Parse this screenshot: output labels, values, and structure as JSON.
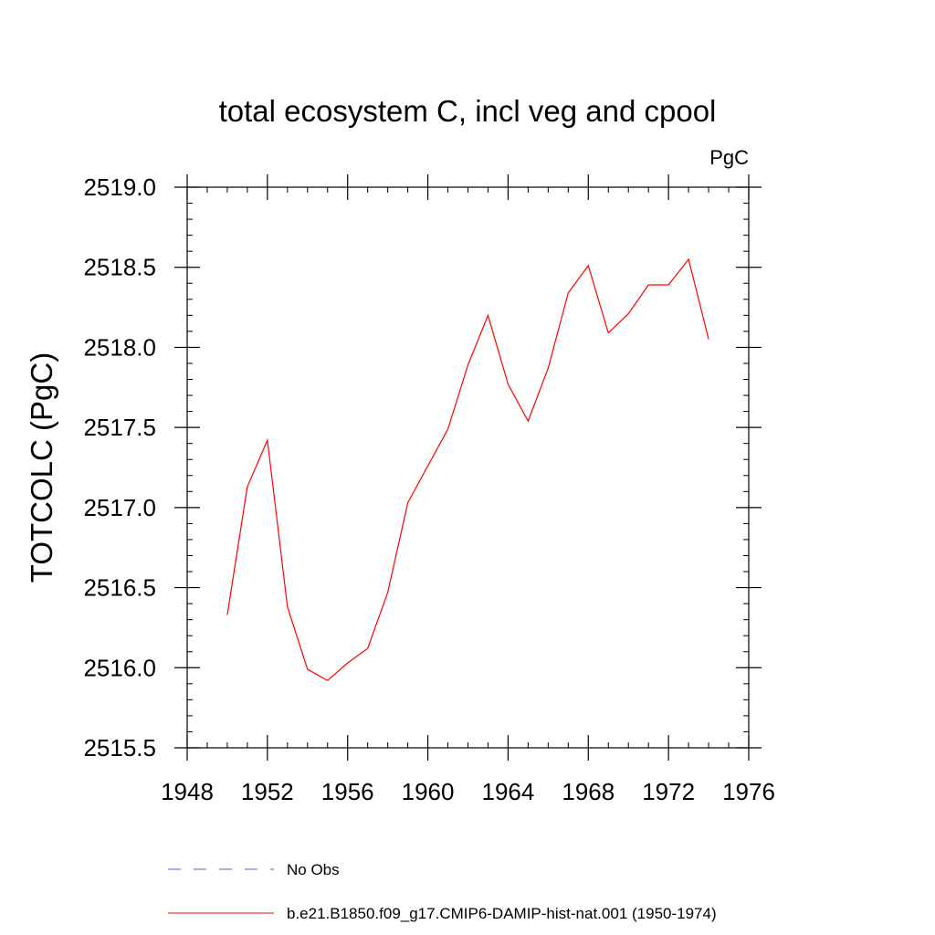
{
  "chart_data": {
    "type": "line",
    "title": "total ecosystem C, incl veg and cpool",
    "units": "PgC",
    "ylabel": "TOTCOLC  (PgC)",
    "xlabel": "",
    "xlim": [
      1948,
      1976
    ],
    "ylim": [
      2515.5,
      2519.0
    ],
    "x_ticks": [
      1948,
      1952,
      1956,
      1960,
      1964,
      1968,
      1972,
      1976
    ],
    "x_tick_labels": [
      "1948",
      "1952",
      "1956",
      "1960",
      "1964",
      "1968",
      "1972",
      "1976"
    ],
    "x_minor_step": 1,
    "y_ticks": [
      2515.5,
      2516.0,
      2516.5,
      2517.0,
      2517.5,
      2518.0,
      2518.5,
      2519.0
    ],
    "y_tick_labels": [
      "2515.5",
      "2516.0",
      "2516.5",
      "2517.0",
      "2517.5",
      "2518.0",
      "2518.5",
      "2519.0"
    ],
    "y_minor_step": 0.1,
    "grid": false,
    "legend_position": "bottom",
    "series": [
      {
        "name": "b.e21.B1850.f09_g17.CMIP6-DAMIP-hist-nat.001 (1950-1974)",
        "color": "#ff0000",
        "dash": "solid",
        "x": [
          1950,
          1951,
          1952,
          1953,
          1954,
          1955,
          1956,
          1957,
          1958,
          1959,
          1960,
          1961,
          1962,
          1963,
          1964,
          1965,
          1966,
          1967,
          1968,
          1969,
          1970,
          1971,
          1972,
          1973,
          1974
        ],
        "y": [
          2516.33,
          2517.13,
          2517.42,
          2516.38,
          2515.99,
          2515.92,
          2516.03,
          2516.12,
          2516.47,
          2517.03,
          2517.26,
          2517.49,
          2517.89,
          2518.2,
          2517.77,
          2517.54,
          2517.87,
          2518.34,
          2518.51,
          2518.09,
          2518.21,
          2518.39,
          2518.39,
          2518.55,
          2518.05
        ]
      }
    ],
    "legend": [
      {
        "label": "No Obs",
        "color": "#6a5acd",
        "dash": "dashed"
      },
      {
        "label": "b.e21.B1850.f09_g17.CMIP6-DAMIP-hist-nat.001 (1950-1974)",
        "color": "#ff0000",
        "dash": "solid"
      }
    ]
  }
}
